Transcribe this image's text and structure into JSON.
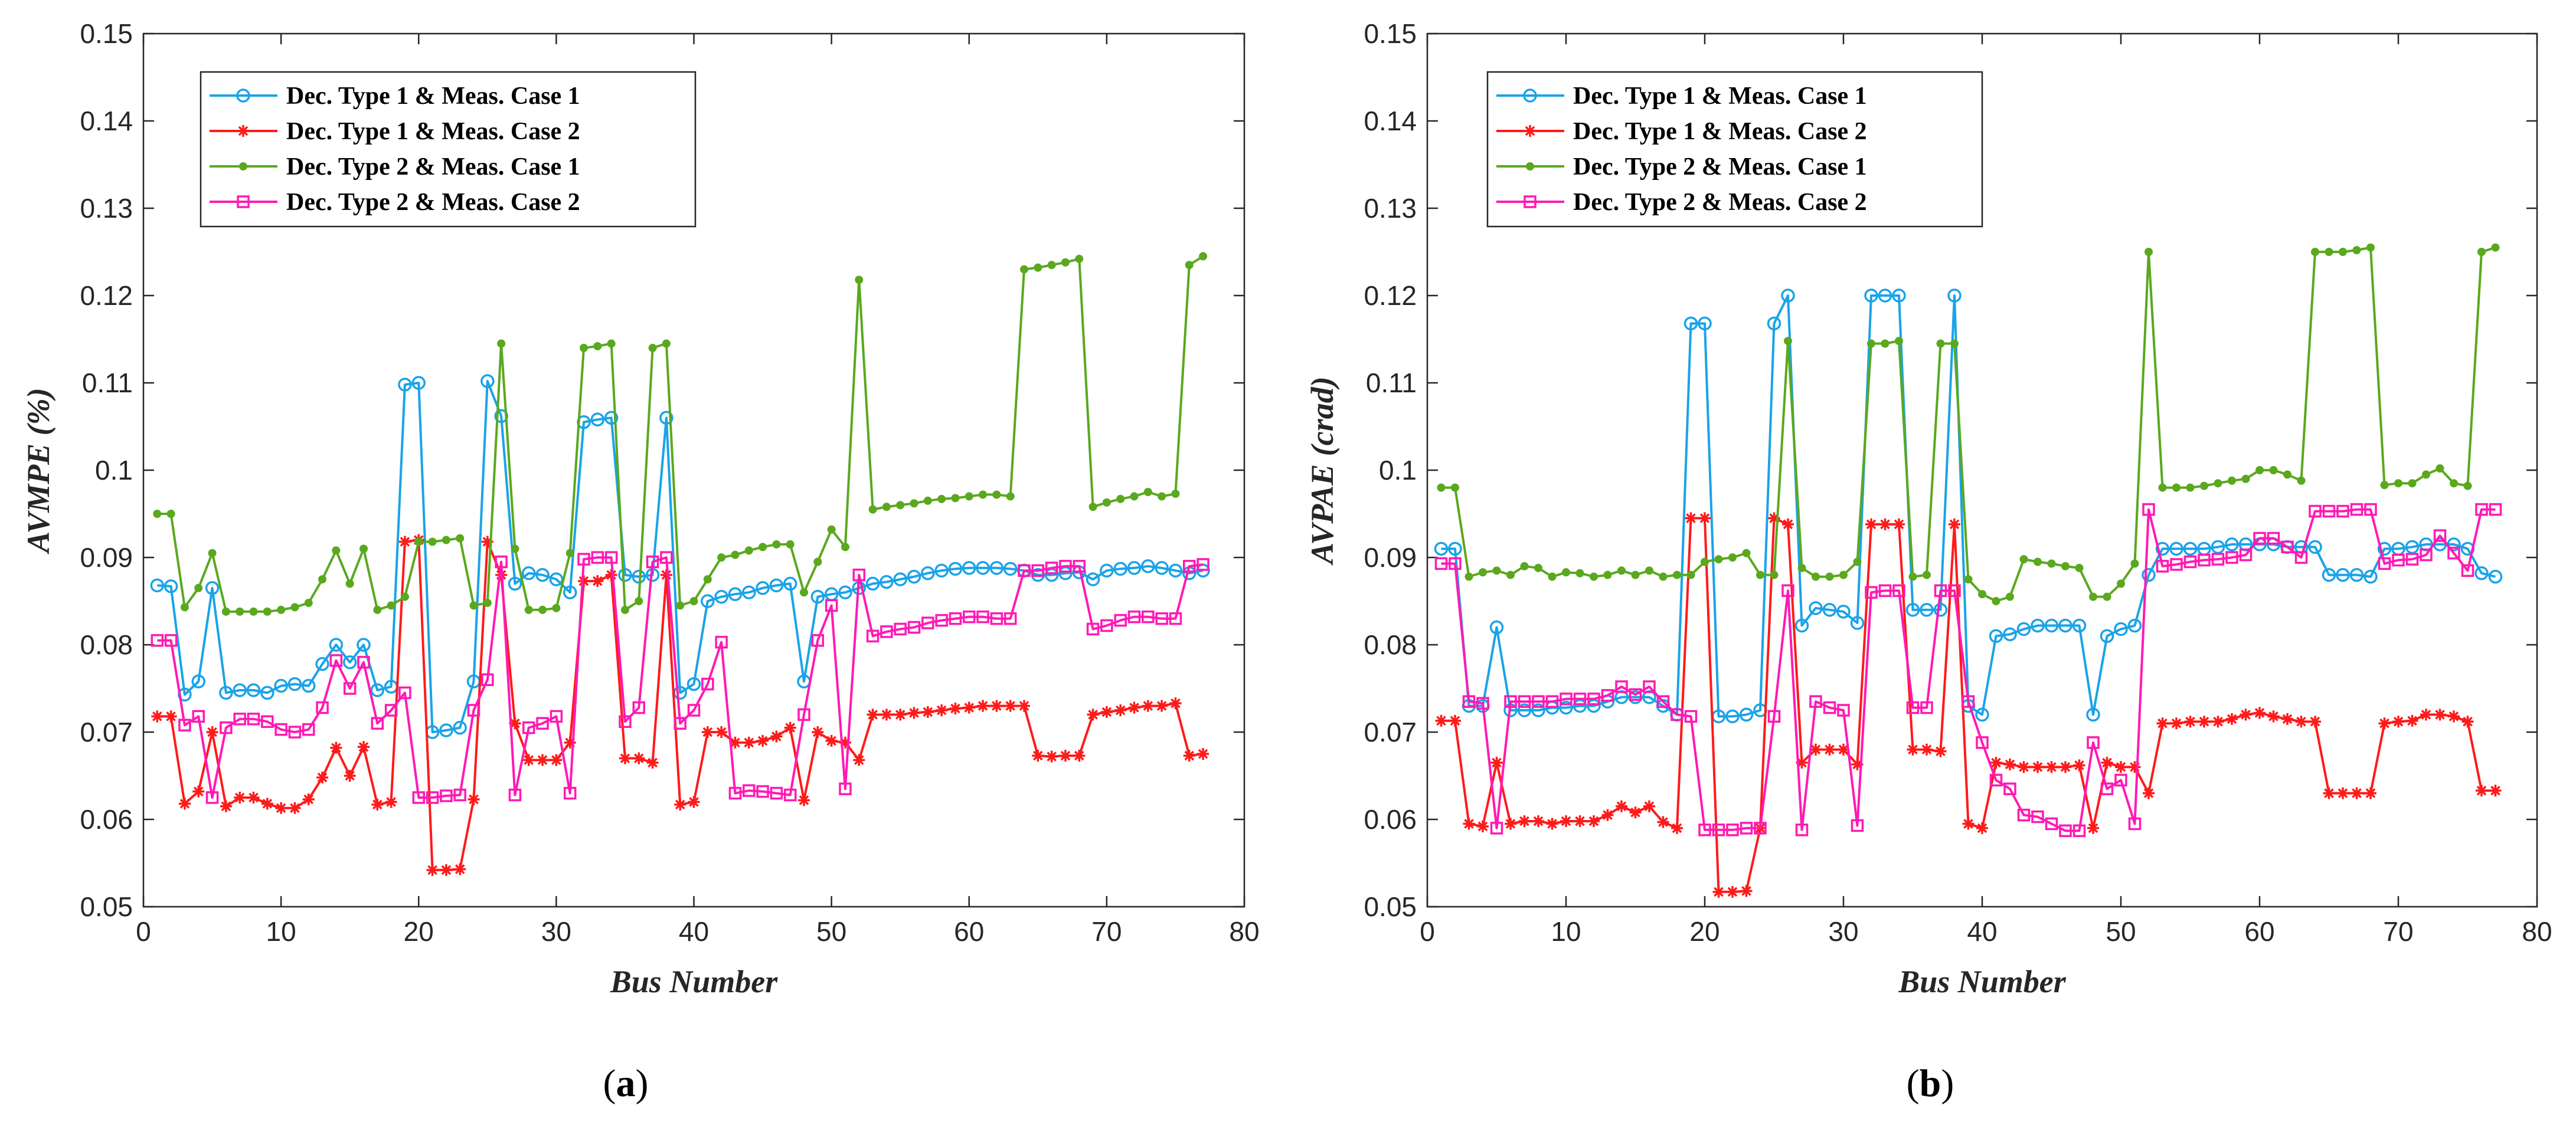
{
  "figure": {
    "panels": [
      {
        "id": "a",
        "label_open": "(",
        "label_letter": "a",
        "label_close": ")"
      },
      {
        "id": "b",
        "label_open": "(",
        "label_letter": "b",
        "label_close": ")"
      }
    ]
  },
  "chart_data": [
    {
      "type": "line",
      "panel": "a",
      "xlabel": "Bus Number",
      "ylabel": "AVMPE (%)",
      "xlim": [
        0,
        80
      ],
      "ylim": [
        0.05,
        0.15
      ],
      "xticks": [
        0,
        10,
        20,
        30,
        40,
        50,
        60,
        70,
        80
      ],
      "yticks": [
        0.05,
        0.06,
        0.07,
        0.08,
        0.09,
        0.1,
        0.11,
        0.12,
        0.13,
        0.14,
        0.15
      ],
      "yticklabels": [
        "0.05",
        "0.06",
        "0.07",
        "0.08",
        "0.09",
        "0.1",
        "0.11",
        "0.12",
        "0.13",
        "0.14",
        "0.15"
      ],
      "grid": false,
      "legend_position": "top-left",
      "series": [
        {
          "name": "Dec. Type 1 & Meas. Case 1",
          "color": "#1aa3e8",
          "marker": "circle",
          "y": [
            0.0868,
            0.0867,
            0.0743,
            0.0758,
            0.0865,
            0.0745,
            0.0748,
            0.0748,
            0.0745,
            0.0753,
            0.0755,
            0.0753,
            0.0778,
            0.08,
            0.078,
            0.08,
            0.0748,
            0.0752,
            0.1098,
            0.11,
            0.07,
            0.0702,
            0.0705,
            0.0758,
            0.1102,
            0.1062,
            0.087,
            0.0882,
            0.088,
            0.0875,
            0.086,
            0.1055,
            0.1058,
            0.106,
            0.088,
            0.0878,
            0.088,
            0.106,
            0.0745,
            0.0755,
            0.085,
            0.0855,
            0.0858,
            0.086,
            0.0865,
            0.0868,
            0.087,
            0.0758,
            0.0855,
            0.0858,
            0.086,
            0.0865,
            0.087,
            0.0872,
            0.0875,
            0.0878,
            0.0882,
            0.0885,
            0.0887,
            0.0888,
            0.0888,
            0.0888,
            0.0887,
            0.0885,
            0.088,
            0.088,
            0.0882,
            0.0883,
            0.0875,
            0.0885,
            0.0887,
            0.0888,
            0.089,
            0.0888,
            0.0885,
            0.0882,
            0.0885
          ]
        },
        {
          "name": "Dec. Type 1 & Meas. Case 2",
          "color": "#ff1a1a",
          "marker": "star",
          "y": [
            0.0718,
            0.0718,
            0.0618,
            0.0632,
            0.07,
            0.0615,
            0.0625,
            0.0625,
            0.0618,
            0.0613,
            0.0613,
            0.0623,
            0.0648,
            0.0682,
            0.065,
            0.0683,
            0.0617,
            0.062,
            0.0918,
            0.092,
            0.0542,
            0.0542,
            0.0543,
            0.0623,
            0.0918,
            0.088,
            0.071,
            0.0668,
            0.0668,
            0.0668,
            0.0688,
            0.0873,
            0.0873,
            0.088,
            0.067,
            0.067,
            0.0665,
            0.088,
            0.0617,
            0.062,
            0.07,
            0.07,
            0.0688,
            0.0688,
            0.069,
            0.0695,
            0.0705,
            0.0622,
            0.07,
            0.069,
            0.0688,
            0.0668,
            0.072,
            0.072,
            0.072,
            0.0722,
            0.0723,
            0.0725,
            0.0727,
            0.0728,
            0.073,
            0.073,
            0.073,
            0.073,
            0.0673,
            0.0672,
            0.0673,
            0.0673,
            0.072,
            0.0723,
            0.0725,
            0.0728,
            0.073,
            0.073,
            0.0733,
            0.0673,
            0.0675
          ]
        },
        {
          "name": "Dec. Type 2 & Meas. Case 1",
          "color": "#5aa81e",
          "marker": "dot",
          "y": [
            0.095,
            0.095,
            0.0843,
            0.0865,
            0.0905,
            0.0838,
            0.0838,
            0.0838,
            0.0838,
            0.084,
            0.0843,
            0.0848,
            0.0875,
            0.0908,
            0.087,
            0.091,
            0.084,
            0.0845,
            0.0855,
            0.0918,
            0.0918,
            0.092,
            0.0922,
            0.0845,
            0.0848,
            0.1145,
            0.091,
            0.084,
            0.084,
            0.0842,
            0.0905,
            0.114,
            0.1142,
            0.1145,
            0.084,
            0.085,
            0.114,
            0.1145,
            0.0845,
            0.085,
            0.0875,
            0.09,
            0.0903,
            0.0908,
            0.0912,
            0.0915,
            0.0915,
            0.086,
            0.0895,
            0.0932,
            0.0912,
            0.1218,
            0.0955,
            0.0958,
            0.096,
            0.0962,
            0.0965,
            0.0967,
            0.0968,
            0.097,
            0.0972,
            0.0972,
            0.097,
            0.123,
            0.1232,
            0.1235,
            0.1238,
            0.1242,
            0.0958,
            0.0963,
            0.0967,
            0.097,
            0.0975,
            0.097,
            0.0973,
            0.1235,
            0.1245
          ]
        },
        {
          "name": "Dec. Type 2 & Meas. Case 2",
          "color": "#ff1ab4",
          "marker": "square",
          "y": [
            0.0805,
            0.0805,
            0.0708,
            0.0718,
            0.0625,
            0.0705,
            0.0715,
            0.0715,
            0.0712,
            0.0703,
            0.07,
            0.0703,
            0.0728,
            0.0782,
            0.075,
            0.078,
            0.071,
            0.0725,
            0.0745,
            0.0625,
            0.0625,
            0.0627,
            0.0628,
            0.0725,
            0.076,
            0.0895,
            0.0628,
            0.0705,
            0.071,
            0.0718,
            0.063,
            0.0898,
            0.09,
            0.09,
            0.0712,
            0.0728,
            0.0895,
            0.09,
            0.071,
            0.0725,
            0.0755,
            0.0803,
            0.063,
            0.0633,
            0.0632,
            0.063,
            0.0628,
            0.072,
            0.0805,
            0.0845,
            0.0635,
            0.088,
            0.081,
            0.0815,
            0.0818,
            0.082,
            0.0825,
            0.0828,
            0.083,
            0.0832,
            0.0832,
            0.083,
            0.083,
            0.0885,
            0.0885,
            0.0888,
            0.089,
            0.089,
            0.0818,
            0.0822,
            0.0828,
            0.0832,
            0.0832,
            0.083,
            0.083,
            0.089,
            0.0892
          ]
        }
      ]
    },
    {
      "type": "line",
      "panel": "b",
      "xlabel": "Bus Number",
      "ylabel": "AVPAE (crad)",
      "xlim": [
        0,
        80
      ],
      "ylim": [
        0.05,
        0.15
      ],
      "xticks": [
        0,
        10,
        20,
        30,
        40,
        50,
        60,
        70,
        80
      ],
      "yticks": [
        0.05,
        0.06,
        0.07,
        0.08,
        0.09,
        0.1,
        0.11,
        0.12,
        0.13,
        0.14,
        0.15
      ],
      "yticklabels": [
        "0.05",
        "0.06",
        "0.07",
        "0.08",
        "0.09",
        "0.1",
        "0.11",
        "0.12",
        "0.13",
        "0.14",
        "0.15"
      ],
      "grid": false,
      "legend_position": "top-left",
      "series": [
        {
          "name": "Dec. Type 1 & Meas. Case 1",
          "color": "#1aa3e8",
          "marker": "circle",
          "y": [
            0.091,
            0.091,
            0.073,
            0.073,
            0.082,
            0.0725,
            0.0725,
            0.0725,
            0.0728,
            0.0728,
            0.073,
            0.073,
            0.0735,
            0.074,
            0.074,
            0.074,
            0.073,
            0.072,
            0.1168,
            0.1168,
            0.0718,
            0.0718,
            0.072,
            0.0725,
            0.1168,
            0.12,
            0.0822,
            0.0842,
            0.084,
            0.0838,
            0.0825,
            0.12,
            0.12,
            0.12,
            0.084,
            0.084,
            0.084,
            0.12,
            0.073,
            0.072,
            0.081,
            0.0812,
            0.0818,
            0.0822,
            0.0822,
            0.0822,
            0.0822,
            0.072,
            0.081,
            0.0818,
            0.0822,
            0.088,
            0.091,
            0.091,
            0.091,
            0.091,
            0.0912,
            0.0915,
            0.0915,
            0.0915,
            0.0915,
            0.0912,
            0.0912,
            0.0912,
            0.088,
            0.088,
            0.088,
            0.0878,
            0.091,
            0.091,
            0.0912,
            0.0915,
            0.0915,
            0.0915,
            0.091,
            0.0882,
            0.0878
          ]
        },
        {
          "name": "Dec. Type 1 & Meas. Case 2",
          "color": "#ff1a1a",
          "marker": "star",
          "y": [
            0.0713,
            0.0713,
            0.0595,
            0.0592,
            0.0665,
            0.0595,
            0.0598,
            0.0598,
            0.0595,
            0.0598,
            0.0598,
            0.0598,
            0.0605,
            0.0615,
            0.0608,
            0.0615,
            0.0597,
            0.059,
            0.0945,
            0.0945,
            0.0517,
            0.0517,
            0.0518,
            0.059,
            0.0945,
            0.0938,
            0.0665,
            0.068,
            0.068,
            0.068,
            0.0663,
            0.0938,
            0.0938,
            0.0938,
            0.068,
            0.068,
            0.0678,
            0.0938,
            0.0595,
            0.059,
            0.0665,
            0.0663,
            0.066,
            0.066,
            0.066,
            0.066,
            0.0662,
            0.059,
            0.0665,
            0.066,
            0.066,
            0.063,
            0.071,
            0.071,
            0.0712,
            0.0712,
            0.0712,
            0.0715,
            0.072,
            0.0722,
            0.0718,
            0.0715,
            0.0712,
            0.0712,
            0.063,
            0.063,
            0.063,
            0.063,
            0.071,
            0.0712,
            0.0713,
            0.072,
            0.072,
            0.0718,
            0.0712,
            0.0633,
            0.0633
          ]
        },
        {
          "name": "Dec. Type 2 & Meas. Case 1",
          "color": "#5aa81e",
          "marker": "dot",
          "y": [
            0.098,
            0.098,
            0.0878,
            0.0883,
            0.0885,
            0.088,
            0.089,
            0.0888,
            0.0878,
            0.0883,
            0.0882,
            0.0878,
            0.088,
            0.0885,
            0.088,
            0.0885,
            0.0878,
            0.088,
            0.088,
            0.0895,
            0.0898,
            0.09,
            0.0905,
            0.088,
            0.088,
            0.1148,
            0.0888,
            0.0878,
            0.0878,
            0.088,
            0.0895,
            0.1145,
            0.1145,
            0.1148,
            0.0878,
            0.088,
            0.1145,
            0.1145,
            0.0875,
            0.0858,
            0.085,
            0.0855,
            0.0898,
            0.0895,
            0.0893,
            0.089,
            0.0888,
            0.0855,
            0.0855,
            0.087,
            0.0893,
            0.125,
            0.098,
            0.098,
            0.098,
            0.0982,
            0.0985,
            0.0988,
            0.099,
            0.1,
            0.1,
            0.0995,
            0.0988,
            0.125,
            0.125,
            0.125,
            0.1252,
            0.1255,
            0.0983,
            0.0985,
            0.0985,
            0.0995,
            0.1002,
            0.0985,
            0.0982,
            0.125,
            0.1255
          ]
        },
        {
          "name": "Dec. Type 2 & Meas. Case 2",
          "color": "#ff1ab4",
          "marker": "square",
          "y": [
            0.0893,
            0.0893,
            0.0735,
            0.0733,
            0.059,
            0.0735,
            0.0735,
            0.0735,
            0.0735,
            0.0738,
            0.0738,
            0.0738,
            0.0742,
            0.0752,
            0.0743,
            0.0752,
            0.0735,
            0.072,
            0.0718,
            0.0588,
            0.0588,
            0.0588,
            0.059,
            0.059,
            0.0718,
            0.0862,
            0.0588,
            0.0735,
            0.0728,
            0.0725,
            0.0593,
            0.086,
            0.0862,
            0.0862,
            0.0728,
            0.0728,
            0.0862,
            0.0862,
            0.0735,
            0.0688,
            0.0645,
            0.0635,
            0.0605,
            0.0603,
            0.0595,
            0.0587,
            0.0587,
            0.0688,
            0.0635,
            0.0645,
            0.0595,
            0.0955,
            0.089,
            0.0892,
            0.0895,
            0.0897,
            0.0898,
            0.09,
            0.0903,
            0.0922,
            0.0922,
            0.0912,
            0.09,
            0.0953,
            0.0953,
            0.0953,
            0.0955,
            0.0955,
            0.0893,
            0.0897,
            0.0898,
            0.0903,
            0.0925,
            0.0905,
            0.0885,
            0.0955,
            0.0955
          ]
        }
      ]
    }
  ]
}
